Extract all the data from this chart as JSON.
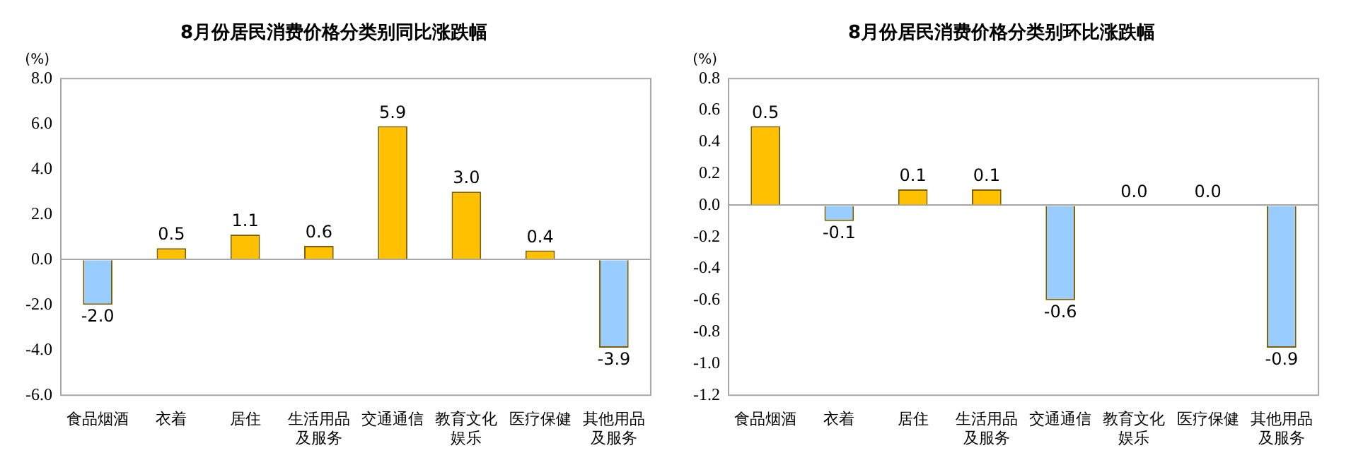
{
  "chart_data": [
    {
      "type": "bar",
      "title": "8月份居民消费价格分类别同比涨跌幅",
      "ylabel": "(%)",
      "categories": [
        "食品烟酒",
        "衣着",
        "居住",
        "生活用品及服务",
        "交通通信",
        "教育文化娱乐",
        "医疗保健",
        "其他用品及服务"
      ],
      "values": [
        -2.0,
        0.5,
        1.1,
        0.6,
        5.9,
        3.0,
        0.4,
        -3.9
      ],
      "colors": [
        "#99ccff",
        "#ffc000",
        "#ffc000",
        "#ffc000",
        "#ffc000",
        "#ffc000",
        "#ffc000",
        "#99ccff"
      ],
      "value_labels": [
        "-2.0",
        "0.5",
        "1.1",
        "0.6",
        "5.9",
        "3.0",
        "0.4",
        "-3.9"
      ],
      "ylim": [
        -6,
        8
      ],
      "yticks": [
        {
          "value": -6,
          "label": "-6.0"
        },
        {
          "value": -4,
          "label": "-4.0"
        },
        {
          "value": -2,
          "label": "-2.0"
        },
        {
          "value": 0,
          "label": "0.0"
        },
        {
          "value": 2,
          "label": "2.0"
        },
        {
          "value": 4,
          "label": "4.0"
        },
        {
          "value": 6,
          "label": "6.0"
        },
        {
          "value": 8,
          "label": "8.0"
        }
      ],
      "legend": false
    },
    {
      "type": "bar",
      "title": "8月份居民消费价格分类别环比涨跌幅",
      "ylabel": "(%)",
      "categories": [
        "食品烟酒",
        "衣着",
        "居住",
        "生活用品及服务",
        "交通通信",
        "教育文化娱乐",
        "医疗保健",
        "其他用品及服务"
      ],
      "values": [
        0.5,
        -0.1,
        0.1,
        0.1,
        -0.6,
        0.0,
        0.0,
        -0.9
      ],
      "colors": [
        "#ffc000",
        "#99ccff",
        "#ffc000",
        "#ffc000",
        "#99ccff",
        "#ffc000",
        "#ffc000",
        "#99ccff"
      ],
      "value_labels": [
        "0.5",
        "-0.1",
        "0.1",
        "0.1",
        "-0.6",
        "0.0",
        "0.0",
        "-0.9"
      ],
      "ylim": [
        -1.2,
        0.8
      ],
      "yticks": [
        {
          "value": -1.2,
          "label": "-1.2"
        },
        {
          "value": -1.0,
          "label": "-1.0"
        },
        {
          "value": -0.8,
          "label": "-0.8"
        },
        {
          "value": -0.6,
          "label": "-0.6"
        },
        {
          "value": -0.4,
          "label": "-0.4"
        },
        {
          "value": -0.2,
          "label": "-0.2"
        },
        {
          "value": 0,
          "label": "0.0"
        },
        {
          "value": 0.2,
          "label": "0.2"
        },
        {
          "value": 0.4,
          "label": "0.4"
        },
        {
          "value": 0.6,
          "label": "0.6"
        },
        {
          "value": 0.8,
          "label": "0.8"
        }
      ],
      "legend": false
    }
  ]
}
